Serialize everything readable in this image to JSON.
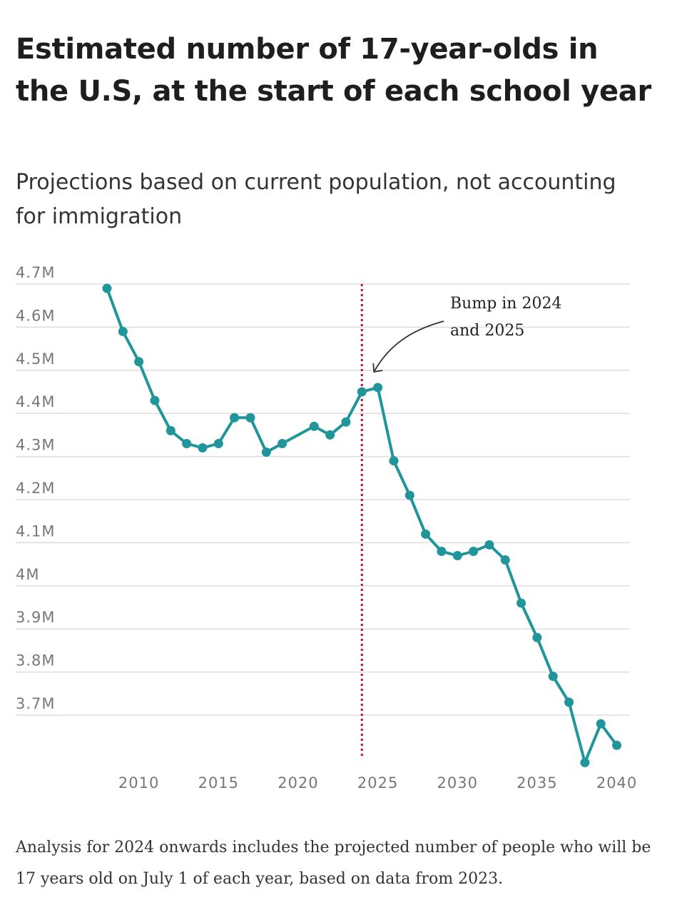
{
  "title": "Estimated number of 17-year-olds in the U.S, at the start of each school year",
  "subtitle": "Projections based on current population, not accounting for immigration",
  "footnote": "Analysis for 2024 onwards includes the projected number of people who will be 17 years old on July 1 of each year, based on data from 2023.",
  "colors": {
    "line": "#20959a",
    "reference_line": "#c8102e",
    "grid": "#dddddd"
  },
  "chart_data": {
    "type": "line",
    "title": "Estimated number of 17-year-olds in the U.S, at the start of each school year",
    "subtitle": "Projections based on current population, not accounting for immigration",
    "xlabel": "",
    "ylabel": "",
    "x": [
      2008,
      2009,
      2010,
      2011,
      2012,
      2013,
      2014,
      2015,
      2016,
      2017,
      2018,
      2019,
      2021,
      2022,
      2023,
      2024,
      2025,
      2026,
      2027,
      2028,
      2029,
      2030,
      2031,
      2032,
      2033,
      2034,
      2035,
      2036,
      2037,
      2038,
      2039,
      2040
    ],
    "y": [
      4.69,
      4.59,
      4.52,
      4.43,
      4.36,
      4.33,
      4.32,
      4.33,
      4.39,
      4.39,
      4.31,
      4.33,
      4.37,
      4.35,
      4.38,
      4.45,
      4.46,
      4.29,
      4.21,
      4.12,
      4.08,
      4.07,
      4.08,
      4.095,
      4.06,
      3.96,
      3.88,
      3.79,
      3.73,
      3.59,
      3.68,
      3.63
    ],
    "y_unit": "millions",
    "xlim": [
      2006.5,
      2040.5
    ],
    "ylim": [
      3.58,
      4.72
    ],
    "x_ticks": [
      2010,
      2015,
      2020,
      2025,
      2030,
      2035,
      2040
    ],
    "x_tick_labels": [
      "2010",
      "2015",
      "2020",
      "2025",
      "2030",
      "2035",
      "2040"
    ],
    "y_ticks": [
      4.7,
      4.6,
      4.5,
      4.4,
      4.3,
      4.2,
      4.1,
      4.0,
      3.9,
      3.8,
      3.7
    ],
    "y_tick_labels": [
      "4.7M",
      "4.6M",
      "4.5M",
      "4.4M",
      "4.3M",
      "4.2M",
      "4.1M",
      "4M",
      "3.9M",
      "3.8M",
      "3.7M"
    ],
    "reference_line_x": 2024,
    "annotation": {
      "text_lines": [
        "Bump in 2024",
        "and 2025"
      ],
      "points_to_x": 2024,
      "points_to_y": 4.45
    },
    "grid": true,
    "legend": "none"
  }
}
